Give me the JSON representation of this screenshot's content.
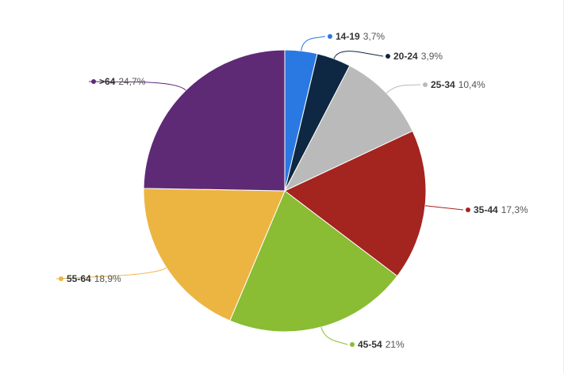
{
  "chart_data": {
    "type": "pie",
    "start_angle_deg": 0,
    "direction": "clockwise",
    "legend": "none",
    "slices": [
      {
        "label": "14-19",
        "value": 3.7,
        "value_text": "3,7%",
        "color": "#2a79e2"
      },
      {
        "label": "20-24",
        "value": 3.9,
        "value_text": "3,9%",
        "color": "#0e2843"
      },
      {
        "label": "25-34",
        "value": 10.4,
        "value_text": "10,4%",
        "color": "#bababa"
      },
      {
        "label": "35-44",
        "value": 17.3,
        "value_text": "17,3%",
        "color": "#a4241f"
      },
      {
        "label": "45-54",
        "value": 21,
        "value_text": "21%",
        "color": "#8abc34"
      },
      {
        "label": "55-64",
        "value": 18.9,
        "value_text": "18,9%",
        "color": "#ecb541"
      },
      {
        "label": ">64",
        "value": 24.7,
        "value_text": "24,7%",
        "color": "#5e2a76"
      }
    ]
  }
}
